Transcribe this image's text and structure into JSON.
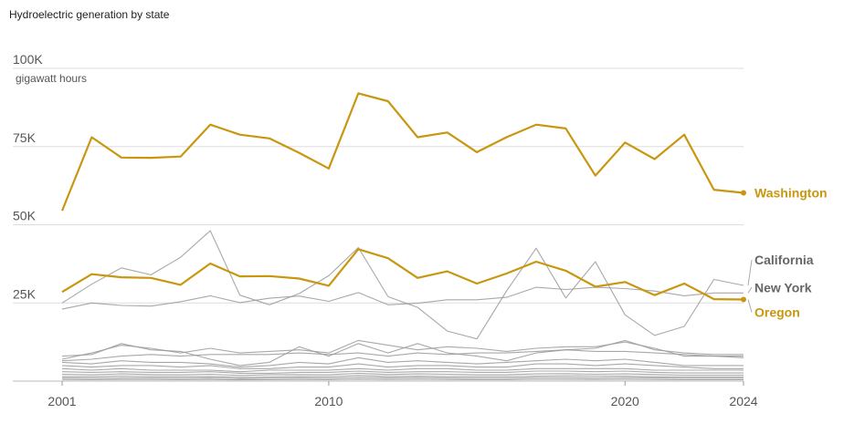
{
  "chart_data": {
    "type": "line",
    "title": "Hydroelectric generation by state",
    "unit_label": "gigawatt hours",
    "ylim": [
      0,
      100000
    ],
    "y_ticks": [
      {
        "value": 25000,
        "label": "25K"
      },
      {
        "value": 50000,
        "label": "50K"
      },
      {
        "value": 75000,
        "label": "75K"
      },
      {
        "value": 100000,
        "label": "100K"
      }
    ],
    "x_ticks": [
      {
        "value": 2001,
        "label": "2001"
      },
      {
        "value": 2010,
        "label": "2010"
      },
      {
        "value": 2020,
        "label": "2020"
      },
      {
        "value": 2024,
        "label": "2024"
      }
    ],
    "x": [
      2001,
      2002,
      2003,
      2004,
      2005,
      2006,
      2007,
      2008,
      2009,
      2010,
      2011,
      2012,
      2013,
      2014,
      2015,
      2016,
      2017,
      2018,
      2019,
      2020,
      2021,
      2022,
      2023,
      2024
    ],
    "colors": {
      "highlight": "#c9960f",
      "other": "#999999",
      "grid": "#dddddd"
    },
    "series": [
      {
        "name": "Washington",
        "highlight": true,
        "values": [
          54500,
          78000,
          71500,
          71400,
          71800,
          82000,
          78800,
          77600,
          73000,
          68000,
          92000,
          89500,
          78000,
          79500,
          73200,
          78000,
          82000,
          80800,
          65700,
          76300,
          71000,
          78800,
          61200,
          60200
        ]
      },
      {
        "name": "Oregon",
        "highlight": true,
        "values": [
          28500,
          34200,
          33200,
          33000,
          30800,
          37600,
          33500,
          33600,
          32800,
          30500,
          42200,
          39300,
          33000,
          35100,
          31200,
          34400,
          38200,
          35300,
          30200,
          31700,
          27500,
          31200,
          26200,
          26100
        ]
      },
      {
        "name": "California",
        "highlight": false,
        "values": [
          25000,
          31000,
          36200,
          34000,
          39600,
          48100,
          27500,
          24400,
          28000,
          33700,
          42700,
          27000,
          23600,
          16000,
          13500,
          28800,
          42500,
          26600,
          38200,
          21200,
          14600,
          17500,
          32500,
          30600
        ]
      },
      {
        "name": "New York",
        "highlight": false,
        "values": [
          23000,
          25000,
          24200,
          24000,
          25400,
          27300,
          25100,
          26500,
          27200,
          25500,
          28300,
          24400,
          24900,
          26000,
          26000,
          26800,
          30000,
          29300,
          30000,
          29600,
          28800,
          27300,
          28200,
          28200
        ]
      },
      {
        "name": "",
        "highlight": false,
        "values": [
          8000,
          8500,
          12000,
          10000,
          9500,
          7000,
          5000,
          6000,
          11000,
          8000,
          12000,
          9000,
          12000,
          9000,
          8000,
          6500,
          9000,
          10000,
          10500,
          13000,
          10000,
          9000,
          8500,
          8500
        ]
      },
      {
        "name": "",
        "highlight": false,
        "values": [
          7000,
          9000,
          11500,
          10500,
          9000,
          10500,
          9000,
          9500,
          10000,
          9000,
          13000,
          11500,
          10000,
          11000,
          10500,
          9500,
          10500,
          11000,
          11000,
          12500,
          10500,
          8000,
          8000,
          8000
        ]
      },
      {
        "name": "",
        "highlight": false,
        "values": [
          6500,
          7000,
          8000,
          8500,
          8000,
          8500,
          8500,
          8500,
          9000,
          8500,
          9000,
          8000,
          9000,
          8500,
          9000,
          9000,
          9500,
          10000,
          9500,
          9500,
          9000,
          8500,
          8000,
          7500
        ]
      },
      {
        "name": "",
        "highlight": false,
        "values": [
          6000,
          5500,
          6500,
          6000,
          6000,
          5500,
          4500,
          5000,
          6000,
          5500,
          7500,
          6000,
          6500,
          6000,
          5500,
          6000,
          6500,
          7000,
          6500,
          7000,
          6000,
          5000,
          5000,
          5000
        ]
      },
      {
        "name": "",
        "highlight": false,
        "values": [
          5000,
          4500,
          5000,
          5000,
          4500,
          5000,
          4000,
          4000,
          4500,
          4500,
          5500,
          4500,
          5000,
          5000,
          4500,
          4500,
          5500,
          5500,
          5000,
          5500,
          5000,
          4500,
          4000,
          4000
        ]
      },
      {
        "name": "",
        "highlight": false,
        "values": [
          4000,
          3500,
          4000,
          3500,
          3500,
          3500,
          3000,
          3500,
          3500,
          3500,
          4000,
          3500,
          4000,
          4000,
          3500,
          3500,
          4000,
          4000,
          4000,
          4000,
          3500,
          3500,
          3500,
          3500
        ]
      },
      {
        "name": "",
        "highlight": false,
        "values": [
          3000,
          2800,
          3000,
          2800,
          2800,
          3000,
          2500,
          2500,
          2800,
          2800,
          3200,
          2800,
          3000,
          3000,
          2800,
          2800,
          3200,
          3200,
          3000,
          3200,
          2800,
          2600,
          2600,
          2600
        ]
      },
      {
        "name": "",
        "highlight": false,
        "values": [
          2200,
          2000,
          2300,
          2100,
          2000,
          2200,
          1800,
          2000,
          2100,
          2000,
          2500,
          2100,
          2300,
          2200,
          2000,
          2000,
          2300,
          2400,
          2200,
          2300,
          2100,
          1900,
          1900,
          1900
        ]
      },
      {
        "name": "",
        "highlight": false,
        "values": [
          1500,
          1400,
          1600,
          1500,
          1400,
          1500,
          1200,
          1300,
          1500,
          1400,
          1800,
          1500,
          1600,
          1500,
          1400,
          1400,
          1600,
          1700,
          1600,
          1600,
          1400,
          1300,
          1300,
          1300
        ]
      },
      {
        "name": "",
        "highlight": false,
        "values": [
          1000,
          900,
          1000,
          1000,
          900,
          1000,
          800,
          900,
          1000,
          900,
          1200,
          1000,
          1100,
          1000,
          900,
          900,
          1100,
          1100,
          1000,
          1100,
          1000,
          900,
          900,
          900
        ]
      },
      {
        "name": "",
        "highlight": false,
        "values": [
          500,
          450,
          500,
          500,
          450,
          500,
          400,
          450,
          500,
          450,
          600,
          500,
          550,
          500,
          450,
          450,
          550,
          550,
          500,
          550,
          500,
          450,
          450,
          450
        ]
      }
    ]
  }
}
